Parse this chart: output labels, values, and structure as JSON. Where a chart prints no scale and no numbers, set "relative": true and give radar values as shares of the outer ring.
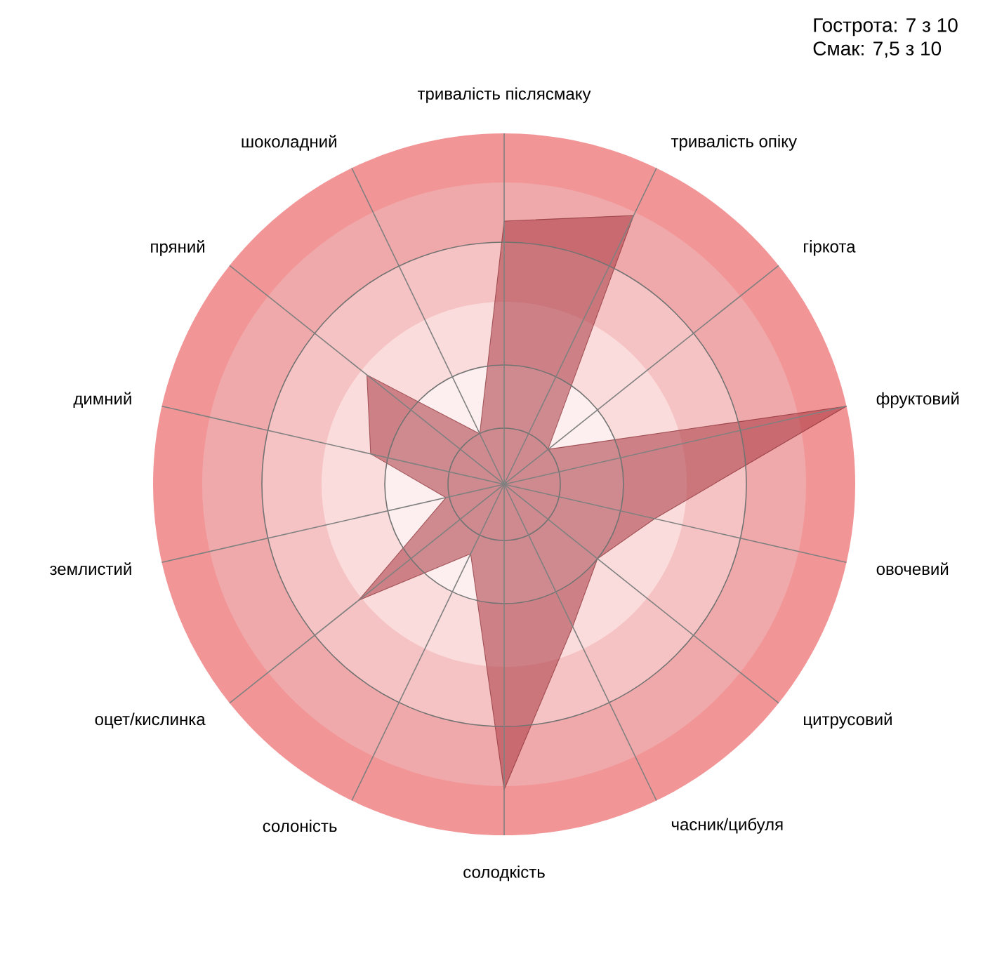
{
  "chart_data": {
    "type": "radar",
    "relative": true,
    "grid": true,
    "categories": [
      "тривалість післясмаку",
      "тривалість опіку",
      "гіркота",
      "фруктовий",
      "овочевий",
      "цитрусовий",
      "часник/цибуля",
      "солодкість",
      "солоність",
      "оцет/кислинка",
      "землистий",
      "димний",
      "пряний",
      "шоколадний"
    ],
    "series": [
      {
        "color": "#a8373f",
        "values": [
          0.75,
          0.85,
          0.16,
          1.0,
          0.44,
          0.34,
          0.45,
          0.87,
          0.22,
          0.53,
          0.17,
          0.39,
          0.5,
          0.16
        ]
      }
    ],
    "annotations": [
      "Гострота: 7 з 10",
      "Смак: 7,5 з 10"
    ]
  }
}
